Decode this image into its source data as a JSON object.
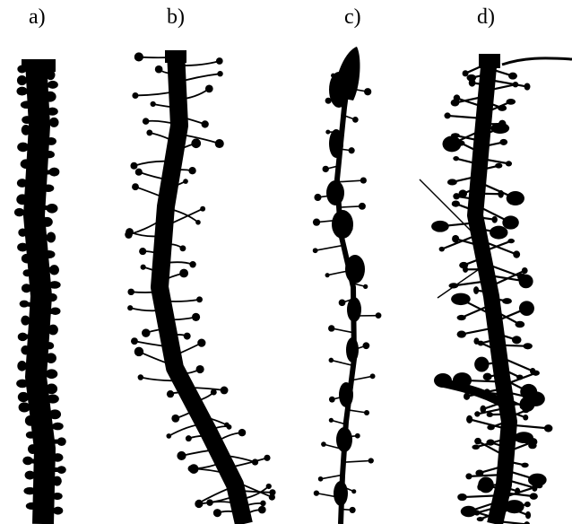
{
  "figure": {
    "panels": [
      {
        "label": "a)",
        "name": "stubby-spine-dendrite"
      },
      {
        "label": "b)",
        "name": "thin-spine-dendrite"
      },
      {
        "label": "c)",
        "name": "beaded-dendrite"
      },
      {
        "label": "d)",
        "name": "dense-mixed-spine-dendrite"
      }
    ],
    "colors": {
      "ink": "#000000",
      "background": "#ffffff"
    }
  }
}
